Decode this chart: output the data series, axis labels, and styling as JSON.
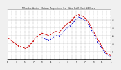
{
  "title": "Milwaukee Weather  Outdoor Temperature (vs)  Wind Chill (Last 24 Hours)",
  "bg_color": "#f0f0f0",
  "plot_bg": "#ffffff",
  "grid_color": "#aaaaaa",
  "y_ticks": [
    5,
    15,
    25,
    35,
    45
  ],
  "y_labels": [
    "5",
    "15",
    "25",
    "35",
    "45"
  ],
  "ylim": [
    -5,
    58
  ],
  "xlim": [
    0,
    48
  ],
  "temp_color": "#cc0000",
  "windchill_color": "#0000cc",
  "temp_x": [
    0,
    1,
    2,
    3,
    4,
    5,
    6,
    7,
    8,
    9,
    10,
    11,
    12,
    13,
    14,
    15,
    16,
    17,
    18,
    19,
    20,
    21,
    22,
    23,
    24,
    25,
    26,
    27,
    28,
    29,
    30,
    31,
    32,
    33,
    34,
    35,
    36,
    37,
    38,
    39,
    40,
    41,
    42,
    43,
    44,
    45,
    46,
    47,
    48
  ],
  "temp_y": [
    22,
    20,
    18,
    16,
    14,
    12,
    11,
    10,
    9,
    10,
    12,
    15,
    18,
    22,
    24,
    26,
    28,
    27,
    26,
    25,
    26,
    28,
    30,
    30,
    29,
    32,
    35,
    38,
    40,
    42,
    45,
    48,
    50,
    51,
    50,
    49,
    47,
    44,
    40,
    35,
    30,
    25,
    20,
    15,
    10,
    6,
    3,
    1,
    0
  ],
  "windchill_x": [
    16,
    17,
    18,
    19,
    20,
    21,
    22,
    23,
    24,
    25,
    26,
    27,
    28,
    29,
    30,
    31,
    32,
    33,
    34,
    35,
    36,
    37,
    38,
    39,
    40,
    41,
    42,
    43,
    44,
    45,
    46,
    47,
    48
  ],
  "windchill_y": [
    22,
    21,
    20,
    19,
    20,
    22,
    24,
    25,
    24,
    27,
    30,
    33,
    35,
    37,
    40,
    43,
    46,
    48,
    47,
    46,
    44,
    41,
    37,
    32,
    27,
    22,
    17,
    12,
    8,
    4,
    2,
    0,
    -2
  ],
  "x_tick_positions": [
    0,
    2,
    4,
    6,
    8,
    10,
    12,
    14,
    16,
    18,
    20,
    22,
    24,
    26,
    28,
    30,
    32,
    34,
    36,
    38,
    40,
    42,
    44,
    46,
    48
  ],
  "x_tick_labels": [
    "1",
    "",
    "3",
    "",
    "5",
    "",
    "7",
    "",
    "9",
    "",
    "11",
    "",
    "1",
    "",
    "3",
    "",
    "5",
    "",
    "7",
    "",
    "9",
    "",
    "11",
    "",
    "1"
  ]
}
